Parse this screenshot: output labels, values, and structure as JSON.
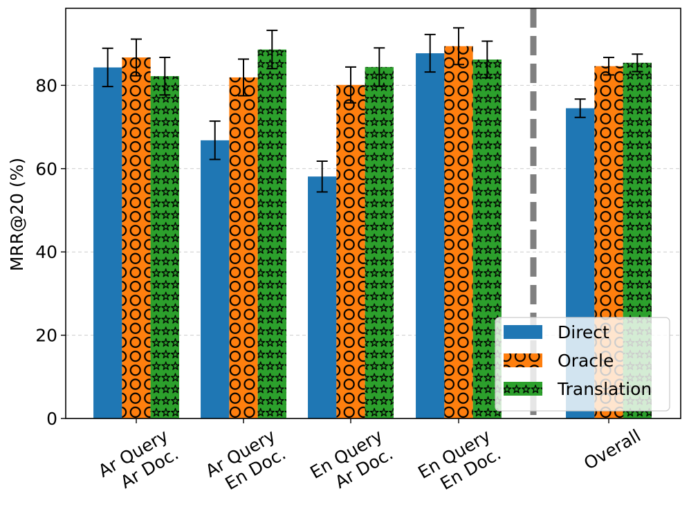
{
  "chart_data": {
    "type": "bar",
    "title": "",
    "xlabel": "",
    "ylabel": "MRR@20 (%)",
    "ylim": [
      0,
      98.5
    ],
    "yticks": [
      0,
      20,
      40,
      60,
      80
    ],
    "grid": "horizontal dashed",
    "legend_position": "lower-right",
    "categories": [
      {
        "lines": [
          "Ar Query",
          "Ar Doc."
        ]
      },
      {
        "lines": [
          "Ar Query",
          "En Doc."
        ]
      },
      {
        "lines": [
          "En Query",
          "Ar Doc."
        ]
      },
      {
        "lines": [
          "En Query",
          "En Doc."
        ]
      },
      {
        "lines": [
          "Overall"
        ]
      }
    ],
    "separator": "dashed vertical line between per-language groups and Overall",
    "series": [
      {
        "name": "Direct",
        "color": "#1f77b4",
        "hatch": "none",
        "values": [
          84.3,
          66.8,
          58.1,
          87.7,
          74.5
        ],
        "errors": [
          4.6,
          4.6,
          3.7,
          4.5,
          2.2
        ]
      },
      {
        "name": "Oracle",
        "color": "#ff7f0e",
        "hatch": "circles",
        "values": [
          86.7,
          81.9,
          80.1,
          89.4,
          84.6
        ],
        "errors": [
          4.4,
          4.4,
          4.3,
          4.4,
          2.1
        ]
      },
      {
        "name": "Translation",
        "color": "#2ca02c",
        "hatch": "stars",
        "values": [
          82.2,
          88.6,
          84.4,
          86.2,
          85.4
        ],
        "errors": [
          4.5,
          4.6,
          4.6,
          4.4,
          2.1
        ]
      }
    ]
  }
}
